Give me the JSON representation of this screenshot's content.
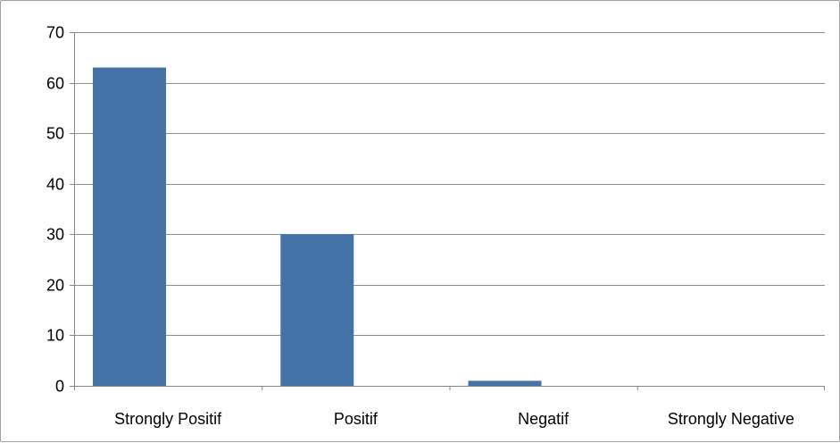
{
  "chart_data": {
    "type": "bar",
    "title": "",
    "xlabel": "",
    "ylabel": "",
    "categories": [
      "Strongly Positif",
      "Positif",
      "Negatif",
      "Strongly Negative"
    ],
    "values": [
      63,
      30,
      1,
      0
    ],
    "ylim": [
      0,
      70
    ],
    "yticks": [
      0,
      10,
      20,
      30,
      40,
      50,
      60,
      70
    ],
    "ytick_labels": [
      "0",
      "10",
      "20",
      "30",
      "40",
      "50",
      "60",
      "70"
    ],
    "grid": true,
    "legend": "none",
    "colors": {
      "bar": "#4572a7",
      "bar_stroke": "#3d6594",
      "grid": "#8c8c8c",
      "axis": "#868686"
    }
  }
}
